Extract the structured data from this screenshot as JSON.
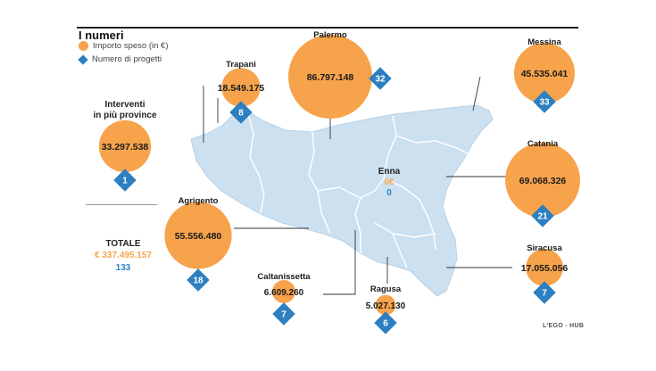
{
  "header": {
    "title": "I numeri",
    "legend": {
      "amount_label": "Importo speso (in €)",
      "projects_label": "Numero di progetti"
    }
  },
  "colors": {
    "amount": "#f6a34b",
    "projects": "#2c7fc1",
    "land": "#cde0f0",
    "border": "#ffffff"
  },
  "multi_province": {
    "label_line1": "Interventi",
    "label_line2": "in più province",
    "amount": "33.297.538",
    "amount_value": 33297538,
    "projects": "1"
  },
  "total": {
    "label": "TOTALE",
    "amount": "€ 337.495.157",
    "projects": "133"
  },
  "provinces": [
    {
      "id": "palermo",
      "name": "Palermo",
      "amount": "86.797.148",
      "amount_value": 86797148,
      "projects": "32"
    },
    {
      "id": "messina",
      "name": "Messina",
      "amount": "45.535.041",
      "amount_value": 45535041,
      "projects": "33"
    },
    {
      "id": "trapani",
      "name": "Trapani",
      "amount": "18.549.175",
      "amount_value": 18549175,
      "projects": "8"
    },
    {
      "id": "catania",
      "name": "Catania",
      "amount": "69.068.326",
      "amount_value": 69068326,
      "projects": "21"
    },
    {
      "id": "agrigento",
      "name": "Agrigento",
      "amount": "55.556.480",
      "amount_value": 55556480,
      "projects": "18"
    },
    {
      "id": "siracusa",
      "name": "Siracusa",
      "amount": "17.055.056",
      "amount_value": 17055056,
      "projects": "7"
    },
    {
      "id": "caltanissetta",
      "name": "Caltanissetta",
      "amount": "6.609.260",
      "amount_value": 6609260,
      "projects": "7"
    },
    {
      "id": "ragusa",
      "name": "Ragusa",
      "amount": "5.027.130",
      "amount_value": 5027130,
      "projects": "6"
    }
  ],
  "enna": {
    "name": "Enna",
    "amount": "0€",
    "projects": "0"
  },
  "credit": "L'EGO - HUB"
}
